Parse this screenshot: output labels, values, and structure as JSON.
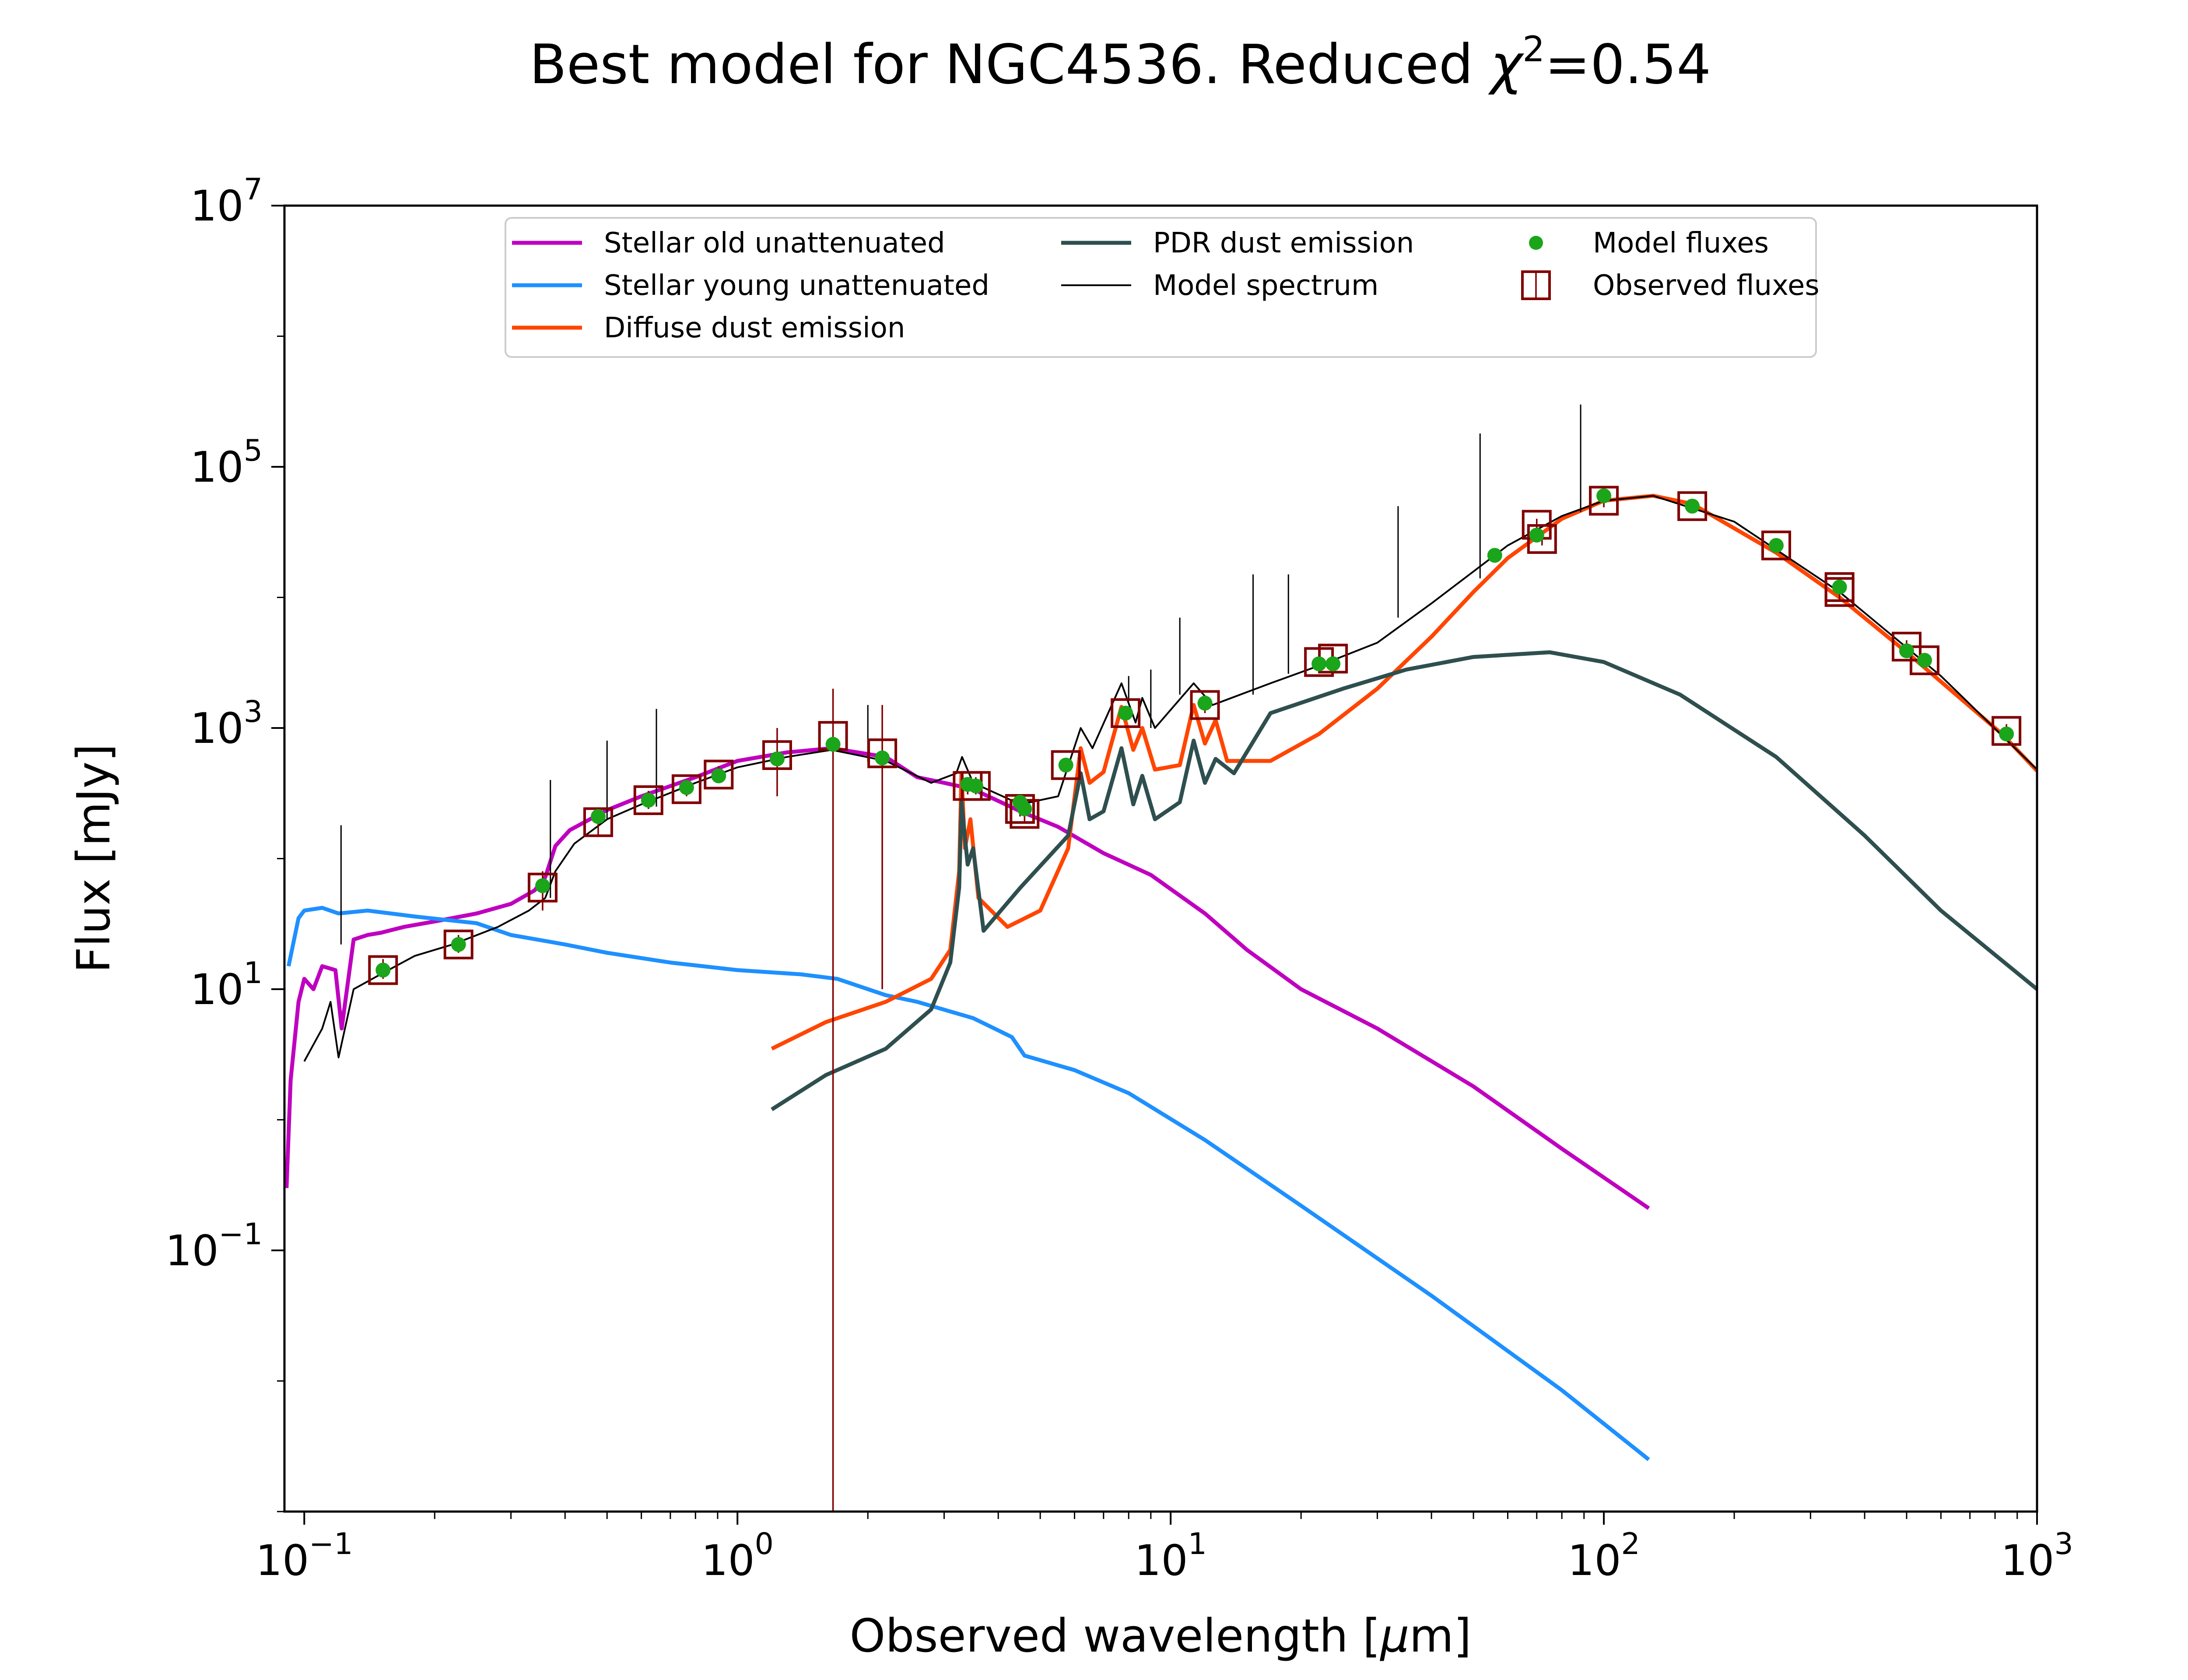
{
  "chart_data": {
    "type": "line",
    "title": {
      "prefix": "Best model for NGC4536. Reduced ",
      "symbol": "χ",
      "superscript": "2",
      "suffix": "=0.54"
    },
    "xlabel": {
      "prefix": "Observed wavelength [",
      "symbol": "μ",
      "suffix": "m]"
    },
    "ylabel": "Flux [mJy]",
    "x_scale": "log",
    "y_scale": "log",
    "xlim": [
      0.09,
      1000
    ],
    "ylim": [
      0.001,
      10000000
    ],
    "grid": false,
    "legend_position": "top-center",
    "x_ticks": [
      {
        "value": 0.1,
        "base": "10",
        "exp": "−1"
      },
      {
        "value": 1,
        "base": "10",
        "exp": "0"
      },
      {
        "value": 10,
        "base": "10",
        "exp": "1"
      },
      {
        "value": 100,
        "base": "10",
        "exp": "2"
      },
      {
        "value": 1000,
        "base": "10",
        "exp": "3"
      }
    ],
    "y_ticks": [
      {
        "value": 0.1,
        "base": "10",
        "exp": "−1"
      },
      {
        "value": 10,
        "base": "10",
        "exp": "1"
      },
      {
        "value": 1000,
        "base": "10",
        "exp": "3"
      },
      {
        "value": 100000,
        "base": "10",
        "exp": "5"
      },
      {
        "value": 10000000,
        "base": "10",
        "exp": "7"
      }
    ],
    "legend": [
      {
        "label": "Stellar old unattenuated",
        "color": "#bf00bf",
        "kind": "line"
      },
      {
        "label": "Stellar young unattenuated",
        "color": "#1e90ff",
        "kind": "line"
      },
      {
        "label": "Diffuse dust emission",
        "color": "#ff4500",
        "kind": "line"
      },
      {
        "label": "PDR dust emission",
        "color": "#2f4f4f",
        "kind": "line"
      },
      {
        "label": "Model spectrum",
        "color": "#000000",
        "kind": "thin-line"
      },
      {
        "label": "Model fluxes",
        "color": "#1aa51a",
        "kind": "dot"
      },
      {
        "label": "Observed fluxes",
        "color": "#800000",
        "kind": "square"
      }
    ],
    "series": [
      {
        "name": "Stellar old unattenuated",
        "color": "#bf00bf",
        "width": 9,
        "points": [
          [
            0.091,
            0.3
          ],
          [
            0.093,
            2
          ],
          [
            0.097,
            8
          ],
          [
            0.1,
            12
          ],
          [
            0.105,
            10
          ],
          [
            0.11,
            15
          ],
          [
            0.118,
            14
          ],
          [
            0.122,
            5
          ],
          [
            0.13,
            24
          ],
          [
            0.14,
            26
          ],
          [
            0.15,
            27
          ],
          [
            0.17,
            30
          ],
          [
            0.2,
            33
          ],
          [
            0.25,
            38
          ],
          [
            0.3,
            45
          ],
          [
            0.34,
            57
          ],
          [
            0.36,
            72
          ],
          [
            0.38,
            125
          ],
          [
            0.41,
            165
          ],
          [
            0.45,
            195
          ],
          [
            0.5,
            235
          ],
          [
            0.6,
            300
          ],
          [
            0.8,
            420
          ],
          [
            1.0,
            560
          ],
          [
            1.3,
            650
          ],
          [
            1.65,
            700
          ],
          [
            2.2,
            600
          ],
          [
            2.6,
            420
          ],
          [
            3.0,
            380
          ],
          [
            3.5,
            340
          ],
          [
            4.5,
            230
          ],
          [
            5.5,
            175
          ],
          [
            7,
            110
          ],
          [
            9,
            75
          ],
          [
            12,
            38
          ],
          [
            15,
            20
          ],
          [
            20,
            10
          ],
          [
            30,
            5
          ],
          [
            50,
            1.8
          ],
          [
            80,
            0.6
          ],
          [
            127,
            0.21
          ]
        ]
      },
      {
        "name": "Stellar young unattenuated",
        "color": "#1e90ff",
        "width": 9,
        "points": [
          [
            0.092,
            15
          ],
          [
            0.097,
            35
          ],
          [
            0.1,
            40
          ],
          [
            0.11,
            42
          ],
          [
            0.12,
            38
          ],
          [
            0.14,
            40
          ],
          [
            0.18,
            36
          ],
          [
            0.25,
            32
          ],
          [
            0.3,
            26
          ],
          [
            0.4,
            22
          ],
          [
            0.5,
            19
          ],
          [
            0.7,
            16
          ],
          [
            1.0,
            14
          ],
          [
            1.4,
            13
          ],
          [
            1.7,
            12
          ],
          [
            2.2,
            9
          ],
          [
            2.6,
            8
          ],
          [
            3.5,
            6
          ],
          [
            4.3,
            4.3
          ],
          [
            4.6,
            3.1
          ],
          [
            6,
            2.4
          ],
          [
            8,
            1.6
          ],
          [
            12,
            0.7
          ],
          [
            20,
            0.22
          ],
          [
            40,
            0.045
          ],
          [
            80,
            0.0085
          ],
          [
            127,
            0.0025
          ]
        ]
      },
      {
        "name": "Diffuse dust emission",
        "color": "#ff4500",
        "width": 9,
        "points": [
          [
            1.2,
            3.5
          ],
          [
            1.6,
            5.6
          ],
          [
            2.2,
            8
          ],
          [
            2.8,
            12
          ],
          [
            3.1,
            20
          ],
          [
            3.25,
            80
          ],
          [
            3.29,
            450
          ],
          [
            3.35,
            120
          ],
          [
            3.45,
            200
          ],
          [
            3.6,
            50
          ],
          [
            4.2,
            30
          ],
          [
            5,
            40
          ],
          [
            5.8,
            120
          ],
          [
            6.2,
            700
          ],
          [
            6.5,
            380
          ],
          [
            7.0,
            460
          ],
          [
            7.7,
            1450
          ],
          [
            8.2,
            680
          ],
          [
            8.6,
            1000
          ],
          [
            9.2,
            480
          ],
          [
            10.5,
            520
          ],
          [
            11.3,
            1500
          ],
          [
            12,
            760
          ],
          [
            12.7,
            1150
          ],
          [
            13.5,
            560
          ],
          [
            17,
            560
          ],
          [
            22,
            900
          ],
          [
            30,
            2000
          ],
          [
            40,
            5000
          ],
          [
            50,
            11000
          ],
          [
            60,
            20000
          ],
          [
            80,
            40000
          ],
          [
            100,
            55000
          ],
          [
            130,
            60000
          ],
          [
            160,
            52000
          ],
          [
            250,
            22000
          ],
          [
            350,
            10000
          ],
          [
            500,
            3800
          ],
          [
            830,
            900
          ],
          [
            1000,
            470
          ]
        ]
      },
      {
        "name": "PDR dust emission",
        "color": "#2f4f4f",
        "width": 9,
        "points": [
          [
            1.2,
            1.2
          ],
          [
            1.6,
            2.2
          ],
          [
            2.2,
            3.5
          ],
          [
            2.8,
            7
          ],
          [
            3.1,
            16
          ],
          [
            3.25,
            60
          ],
          [
            3.29,
            270
          ],
          [
            3.4,
            90
          ],
          [
            3.5,
            120
          ],
          [
            3.7,
            28
          ],
          [
            4.5,
            60
          ],
          [
            5.8,
            150
          ],
          [
            6.2,
            450
          ],
          [
            6.5,
            200
          ],
          [
            7.0,
            230
          ],
          [
            7.7,
            700
          ],
          [
            8.2,
            260
          ],
          [
            8.6,
            430
          ],
          [
            9.2,
            200
          ],
          [
            10.5,
            270
          ],
          [
            11.3,
            800
          ],
          [
            12,
            380
          ],
          [
            12.7,
            580
          ],
          [
            14,
            450
          ],
          [
            17,
            1300
          ],
          [
            25,
            2000
          ],
          [
            35,
            2800
          ],
          [
            50,
            3500
          ],
          [
            75,
            3800
          ],
          [
            100,
            3200
          ],
          [
            150,
            1800
          ],
          [
            250,
            600
          ],
          [
            400,
            150
          ],
          [
            600,
            40
          ],
          [
            1000,
            10
          ]
        ]
      },
      {
        "name": "Model spectrum",
        "color": "#000000",
        "width": 4,
        "points": [
          [
            0.1,
            2.8
          ],
          [
            0.11,
            5
          ],
          [
            0.115,
            8
          ],
          [
            0.12,
            3
          ],
          [
            0.13,
            10
          ],
          [
            0.15,
            13
          ],
          [
            0.18,
            18
          ],
          [
            0.22,
            22
          ],
          [
            0.28,
            30
          ],
          [
            0.33,
            40
          ],
          [
            0.36,
            50
          ],
          [
            0.38,
            80
          ],
          [
            0.42,
            130
          ],
          [
            0.5,
            200
          ],
          [
            0.6,
            260
          ],
          [
            0.8,
            380
          ],
          [
            1.0,
            500
          ],
          [
            1.3,
            600
          ],
          [
            1.65,
            680
          ],
          [
            2.2,
            560
          ],
          [
            2.8,
            380
          ],
          [
            3.2,
            450
          ],
          [
            3.3,
            600
          ],
          [
            3.5,
            380
          ],
          [
            4.5,
            260
          ],
          [
            5.5,
            300
          ],
          [
            6.2,
            1000
          ],
          [
            6.6,
            700
          ],
          [
            7.7,
            2200
          ],
          [
            8.3,
            1100
          ],
          [
            8.6,
            1700
          ],
          [
            9.2,
            1000
          ],
          [
            11.3,
            2200
          ],
          [
            12.5,
            1500
          ],
          [
            17,
            2200
          ],
          [
            22,
            3000
          ],
          [
            30,
            4500
          ],
          [
            40,
            9000
          ],
          [
            60,
            25000
          ],
          [
            80,
            42000
          ],
          [
            100,
            55000
          ],
          [
            130,
            60000
          ],
          [
            200,
            38000
          ],
          [
            350,
            11000
          ],
          [
            600,
            2500
          ],
          [
            1000,
            480
          ]
        ]
      }
    ],
    "spectral_lines": [
      [
        0.1216,
        180,
        22
      ],
      [
        0.37,
        50,
        400
      ],
      [
        0.5,
        200,
        800
      ],
      [
        0.65,
        250,
        1400
      ],
      [
        2.0,
        550,
        1500
      ],
      [
        8.0,
        1600,
        2500
      ],
      [
        9.0,
        1000,
        2800
      ],
      [
        10.5,
        1800,
        7000
      ],
      [
        15.5,
        1800,
        15000
      ],
      [
        18.7,
        2600,
        15000
      ],
      [
        33.5,
        7000,
        50000
      ],
      [
        51.8,
        14000,
        180000
      ],
      [
        88.4,
        45000,
        300000
      ]
    ],
    "observed_fluxes": [
      {
        "x": 0.152,
        "y": 14,
        "err": [
          12,
          17
        ]
      },
      {
        "x": 0.227,
        "y": 22,
        "err": [
          19,
          26
        ]
      },
      {
        "x": 0.355,
        "y": 60,
        "err": [
          40,
          80
        ]
      },
      {
        "x": 0.477,
        "y": 190,
        "err": [
          150,
          230
        ]
      },
      {
        "x": 0.623,
        "y": 280,
        "err": [
          240,
          330
        ]
      },
      {
        "x": 0.763,
        "y": 340,
        "err": [
          300,
          390
        ]
      },
      {
        "x": 0.905,
        "y": 440,
        "err": [
          380,
          510
        ]
      },
      {
        "x": 1.235,
        "y": 620,
        "err": [
          300,
          1000
        ]
      },
      {
        "x": 1.662,
        "y": 870,
        "err": [
          0.001,
          2000
        ]
      },
      {
        "x": 2.159,
        "y": 640,
        "err": [
          10,
          1500
        ]
      },
      {
        "x": 3.4,
        "y": 360,
        "err": [
          310,
          420
        ]
      },
      {
        "x": 3.55,
        "y": 360,
        "err": [
          310,
          420
        ]
      },
      {
        "x": 4.49,
        "y": 240,
        "err": [
          210,
          280
        ]
      },
      {
        "x": 4.6,
        "y": 220,
        "err": [
          190,
          250
        ]
      },
      {
        "x": 5.73,
        "y": 520,
        "err": [
          460,
          580
        ]
      },
      {
        "x": 7.87,
        "y": 1300,
        "err": [
          1150,
          1450
        ]
      },
      {
        "x": 12,
        "y": 1500,
        "err": [
          1300,
          1700
        ]
      },
      {
        "x": 22,
        "y": 3200,
        "err": [
          2800,
          3700
        ]
      },
      {
        "x": 23.7,
        "y": 3400,
        "err": [
          3000,
          3900
        ]
      },
      {
        "x": 70,
        "y": 36000,
        "err": [
          32000,
          40000
        ]
      },
      {
        "x": 72,
        "y": 28000,
        "err": [
          25000,
          31000
        ]
      },
      {
        "x": 100,
        "y": 55000,
        "err": [
          49000,
          61000
        ]
      },
      {
        "x": 160,
        "y": 50000,
        "err": [
          45000,
          55000
        ]
      },
      {
        "x": 250,
        "y": 25000,
        "err": [
          22000,
          28000
        ]
      },
      {
        "x": 350,
        "y": 12000,
        "err": [
          10500,
          13500
        ]
      },
      {
        "x": 350,
        "y": 11000,
        "err": [
          9500,
          12500
        ]
      },
      {
        "x": 500,
        "y": 4200,
        "err": [
          3700,
          4700
        ]
      },
      {
        "x": 550,
        "y": 3300,
        "err": [
          2900,
          3700
        ]
      },
      {
        "x": 850,
        "y": 950,
        "err": [
          830,
          1070
        ]
      }
    ],
    "model_fluxes": [
      [
        0.152,
        14
      ],
      [
        0.227,
        22
      ],
      [
        0.355,
        62
      ],
      [
        0.477,
        210
      ],
      [
        0.623,
        280
      ],
      [
        0.763,
        350
      ],
      [
        0.905,
        430
      ],
      [
        1.235,
        580
      ],
      [
        1.662,
        750
      ],
      [
        2.159,
        590
      ],
      [
        3.4,
        370
      ],
      [
        3.55,
        360
      ],
      [
        4.49,
        270
      ],
      [
        4.6,
        240
      ],
      [
        5.73,
        520
      ],
      [
        7.87,
        1300
      ],
      [
        12,
        1550
      ],
      [
        22,
        3100
      ],
      [
        23.7,
        3100
      ],
      [
        56,
        21000
      ],
      [
        70,
        30000
      ],
      [
        100,
        60000
      ],
      [
        160,
        50000
      ],
      [
        250,
        25000
      ],
      [
        350,
        12000
      ],
      [
        500,
        3900
      ],
      [
        550,
        3300
      ],
      [
        850,
        900
      ]
    ],
    "colors": {
      "observed": "#800000",
      "model_flux": "#1aa51a",
      "axes": "#000000",
      "legend_border": "#cccccc"
    }
  }
}
